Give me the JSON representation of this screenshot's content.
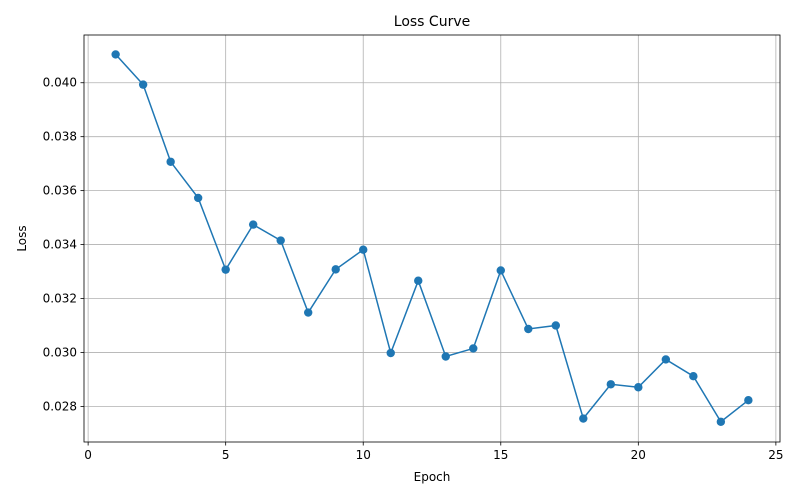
{
  "chart_data": {
    "type": "line",
    "title": "Loss Curve",
    "xlabel": "Epoch",
    "ylabel": "Loss",
    "xlim": [
      -0.15,
      25.15
    ],
    "ylim": [
      0.02668,
      0.04177
    ],
    "xticks": [
      0,
      5,
      10,
      15,
      20,
      25
    ],
    "xtick_labels": [
      "0",
      "5",
      "10",
      "15",
      "20",
      "25"
    ],
    "yticks": [
      0.028,
      0.03,
      0.032,
      0.034,
      0.036,
      0.038,
      0.04
    ],
    "ytick_labels": [
      "0.028",
      "0.030",
      "0.032",
      "0.034",
      "0.036",
      "0.038",
      "0.040"
    ],
    "grid": true,
    "series": [
      {
        "color": "#1f77b4",
        "marker": "circle",
        "x": [
          1,
          2,
          3,
          4,
          5,
          6,
          7,
          8,
          9,
          10,
          11,
          12,
          13,
          14,
          15,
          16,
          17,
          18,
          19,
          20,
          21,
          22,
          23,
          24
        ],
        "y": [
          0.04105,
          0.03993,
          0.03707,
          0.03573,
          0.03307,
          0.03474,
          0.03415,
          0.03148,
          0.03308,
          0.03381,
          0.02998,
          0.03266,
          0.02985,
          0.03015,
          0.03304,
          0.03087,
          0.031,
          0.02755,
          0.02882,
          0.02871,
          0.02974,
          0.02912,
          0.02743,
          0.02823
        ]
      }
    ]
  }
}
